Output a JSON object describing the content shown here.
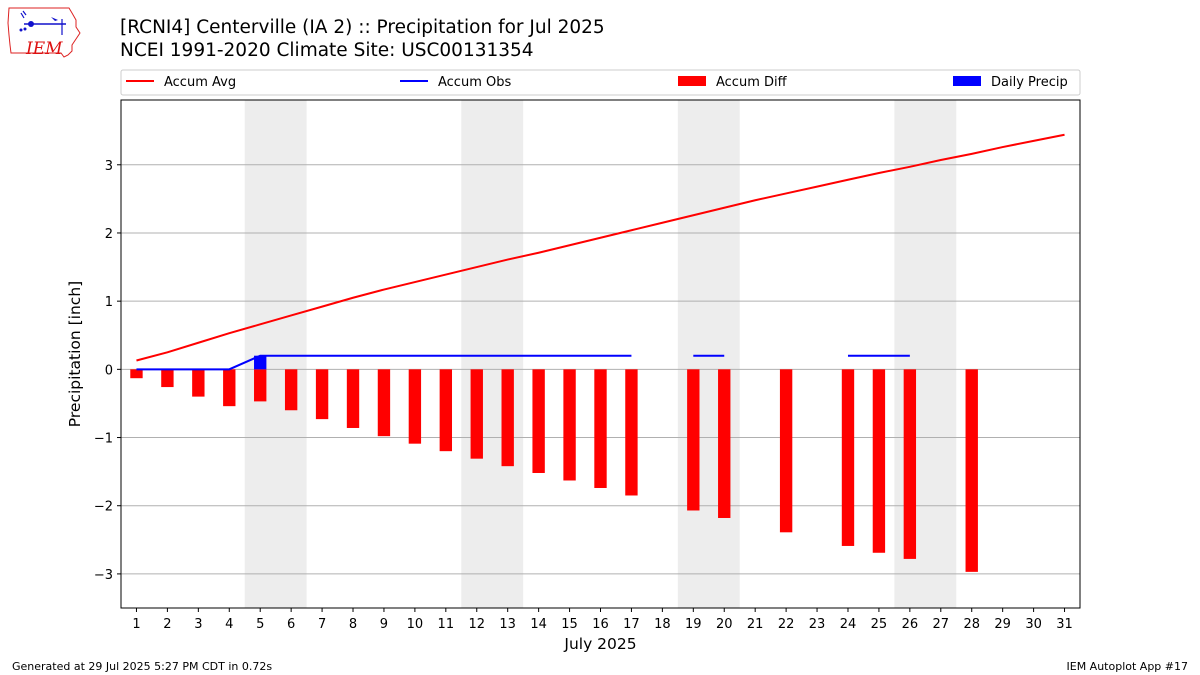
{
  "header": {
    "title": "[RCNI4] Centerville (IA 2) :: Precipitation for Jul 2025",
    "subtitle": "NCEI 1991-2020 Climate Site: USC00131354"
  },
  "logo": {
    "text": "IEM",
    "icon": "iowa-state-outline-icon"
  },
  "footer": {
    "left": "Generated at 29 Jul 2025 5:27 PM CDT in 0.72s",
    "right": "IEM Autoplot App #17"
  },
  "chart_data": {
    "type": "bar",
    "xlabel": "July 2025",
    "ylabel": "Precipitation [inch]",
    "xlim": [
      0.5,
      31.5
    ],
    "ylim": [
      -3.5,
      3.95
    ],
    "x_ticks": [
      1,
      2,
      3,
      4,
      5,
      6,
      7,
      8,
      9,
      10,
      11,
      12,
      13,
      14,
      15,
      16,
      17,
      18,
      19,
      20,
      21,
      22,
      23,
      24,
      25,
      26,
      27,
      28,
      29,
      30,
      31
    ],
    "y_ticks": [
      -3,
      -2,
      -1,
      0,
      1,
      2,
      3
    ],
    "y_tick_labels": [
      "−3",
      "−2",
      "−1",
      "0",
      "1",
      "2",
      "3"
    ],
    "grid": "horizontal",
    "legend_position": "top",
    "weekend_shading": [
      [
        4.5,
        6.5
      ],
      [
        11.5,
        13.5
      ],
      [
        18.5,
        20.5
      ],
      [
        25.5,
        27.5
      ]
    ],
    "colors": {
      "accum_avg": "#ff0000",
      "accum_obs": "#0000ff",
      "accum_diff": "#ff0000",
      "daily_precip": "#0000ff",
      "weekend": "#ededed",
      "grid": "#b0b0b0"
    },
    "series": [
      {
        "name": "Accum Avg",
        "kind": "line",
        "x": [
          1,
          2,
          3,
          4,
          5,
          6,
          7,
          8,
          9,
          10,
          11,
          12,
          13,
          14,
          15,
          16,
          17,
          18,
          19,
          20,
          21,
          22,
          23,
          24,
          25,
          26,
          27,
          28,
          29,
          30,
          31
        ],
        "values": [
          0.13,
          0.25,
          0.39,
          0.53,
          0.66,
          0.79,
          0.92,
          1.05,
          1.17,
          1.28,
          1.39,
          1.5,
          1.61,
          1.71,
          1.82,
          1.93,
          2.04,
          2.15,
          2.26,
          2.37,
          2.48,
          2.58,
          2.68,
          2.78,
          2.88,
          2.97,
          3.07,
          3.16,
          3.26,
          3.35,
          3.44
        ]
      },
      {
        "name": "Accum Obs",
        "kind": "line",
        "segments": [
          {
            "x": [
              1,
              2,
              3,
              4,
              5,
              6,
              7,
              8,
              9,
              10,
              11,
              12,
              13,
              14,
              15,
              16,
              17
            ],
            "values": [
              0,
              0,
              0,
              0,
              0.2,
              0.2,
              0.2,
              0.2,
              0.2,
              0.2,
              0.2,
              0.2,
              0.2,
              0.2,
              0.2,
              0.2,
              0.2
            ]
          },
          {
            "x": [
              19,
              20
            ],
            "values": [
              0.2,
              0.2
            ]
          },
          {
            "x": [
              24,
              25,
              26
            ],
            "values": [
              0.2,
              0.2,
              0.2
            ]
          }
        ]
      },
      {
        "name": "Accum Diff",
        "kind": "bar",
        "x": [
          1,
          2,
          3,
          4,
          5,
          6,
          7,
          8,
          9,
          10,
          11,
          12,
          13,
          14,
          15,
          16,
          17,
          19,
          20,
          22,
          24,
          25,
          26,
          28
        ],
        "values": [
          -0.13,
          -0.26,
          -0.4,
          -0.54,
          -0.47,
          -0.6,
          -0.73,
          -0.86,
          -0.98,
          -1.09,
          -1.2,
          -1.31,
          -1.42,
          -1.52,
          -1.63,
          -1.74,
          -1.85,
          -2.07,
          -2.18,
          -2.39,
          -2.59,
          -2.69,
          -2.78,
          -2.97
        ]
      },
      {
        "name": "Daily Precip",
        "kind": "bar",
        "x": [
          5
        ],
        "values": [
          0.2
        ]
      }
    ]
  }
}
